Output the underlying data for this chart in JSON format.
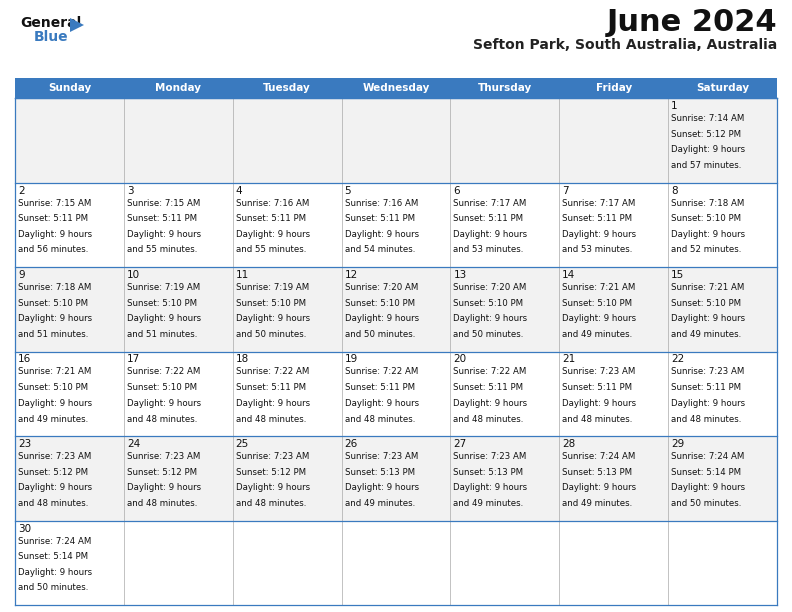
{
  "title": "June 2024",
  "subtitle": "Sefton Park, South Australia, Australia",
  "header_bg": "#3a7abf",
  "header_text": "#ffffff",
  "border_color": "#3a7abf",
  "cell_bg_even": "#f2f2f2",
  "cell_bg_odd": "#ffffff",
  "days_of_week": [
    "Sunday",
    "Monday",
    "Tuesday",
    "Wednesday",
    "Thursday",
    "Friday",
    "Saturday"
  ],
  "calendar_data": [
    [
      null,
      null,
      null,
      null,
      null,
      null,
      {
        "day": 1,
        "sunrise": "7:14 AM",
        "sunset": "5:12 PM",
        "daylight": "9 hours",
        "daylight2": "and 57 minutes."
      }
    ],
    [
      {
        "day": 2,
        "sunrise": "7:15 AM",
        "sunset": "5:11 PM",
        "daylight": "9 hours",
        "daylight2": "and 56 minutes."
      },
      {
        "day": 3,
        "sunrise": "7:15 AM",
        "sunset": "5:11 PM",
        "daylight": "9 hours",
        "daylight2": "and 55 minutes."
      },
      {
        "day": 4,
        "sunrise": "7:16 AM",
        "sunset": "5:11 PM",
        "daylight": "9 hours",
        "daylight2": "and 55 minutes."
      },
      {
        "day": 5,
        "sunrise": "7:16 AM",
        "sunset": "5:11 PM",
        "daylight": "9 hours",
        "daylight2": "and 54 minutes."
      },
      {
        "day": 6,
        "sunrise": "7:17 AM",
        "sunset": "5:11 PM",
        "daylight": "9 hours",
        "daylight2": "and 53 minutes."
      },
      {
        "day": 7,
        "sunrise": "7:17 AM",
        "sunset": "5:11 PM",
        "daylight": "9 hours",
        "daylight2": "and 53 minutes."
      },
      {
        "day": 8,
        "sunrise": "7:18 AM",
        "sunset": "5:10 PM",
        "daylight": "9 hours",
        "daylight2": "and 52 minutes."
      }
    ],
    [
      {
        "day": 9,
        "sunrise": "7:18 AM",
        "sunset": "5:10 PM",
        "daylight": "9 hours",
        "daylight2": "and 51 minutes."
      },
      {
        "day": 10,
        "sunrise": "7:19 AM",
        "sunset": "5:10 PM",
        "daylight": "9 hours",
        "daylight2": "and 51 minutes."
      },
      {
        "day": 11,
        "sunrise": "7:19 AM",
        "sunset": "5:10 PM",
        "daylight": "9 hours",
        "daylight2": "and 50 minutes."
      },
      {
        "day": 12,
        "sunrise": "7:20 AM",
        "sunset": "5:10 PM",
        "daylight": "9 hours",
        "daylight2": "and 50 minutes."
      },
      {
        "day": 13,
        "sunrise": "7:20 AM",
        "sunset": "5:10 PM",
        "daylight": "9 hours",
        "daylight2": "and 50 minutes."
      },
      {
        "day": 14,
        "sunrise": "7:21 AM",
        "sunset": "5:10 PM",
        "daylight": "9 hours",
        "daylight2": "and 49 minutes."
      },
      {
        "day": 15,
        "sunrise": "7:21 AM",
        "sunset": "5:10 PM",
        "daylight": "9 hours",
        "daylight2": "and 49 minutes."
      }
    ],
    [
      {
        "day": 16,
        "sunrise": "7:21 AM",
        "sunset": "5:10 PM",
        "daylight": "9 hours",
        "daylight2": "and 49 minutes."
      },
      {
        "day": 17,
        "sunrise": "7:22 AM",
        "sunset": "5:10 PM",
        "daylight": "9 hours",
        "daylight2": "and 48 minutes."
      },
      {
        "day": 18,
        "sunrise": "7:22 AM",
        "sunset": "5:11 PM",
        "daylight": "9 hours",
        "daylight2": "and 48 minutes."
      },
      {
        "day": 19,
        "sunrise": "7:22 AM",
        "sunset": "5:11 PM",
        "daylight": "9 hours",
        "daylight2": "and 48 minutes."
      },
      {
        "day": 20,
        "sunrise": "7:22 AM",
        "sunset": "5:11 PM",
        "daylight": "9 hours",
        "daylight2": "and 48 minutes."
      },
      {
        "day": 21,
        "sunrise": "7:23 AM",
        "sunset": "5:11 PM",
        "daylight": "9 hours",
        "daylight2": "and 48 minutes."
      },
      {
        "day": 22,
        "sunrise": "7:23 AM",
        "sunset": "5:11 PM",
        "daylight": "9 hours",
        "daylight2": "and 48 minutes."
      }
    ],
    [
      {
        "day": 23,
        "sunrise": "7:23 AM",
        "sunset": "5:12 PM",
        "daylight": "9 hours",
        "daylight2": "and 48 minutes."
      },
      {
        "day": 24,
        "sunrise": "7:23 AM",
        "sunset": "5:12 PM",
        "daylight": "9 hours",
        "daylight2": "and 48 minutes."
      },
      {
        "day": 25,
        "sunrise": "7:23 AM",
        "sunset": "5:12 PM",
        "daylight": "9 hours",
        "daylight2": "and 48 minutes."
      },
      {
        "day": 26,
        "sunrise": "7:23 AM",
        "sunset": "5:13 PM",
        "daylight": "9 hours",
        "daylight2": "and 49 minutes."
      },
      {
        "day": 27,
        "sunrise": "7:23 AM",
        "sunset": "5:13 PM",
        "daylight": "9 hours",
        "daylight2": "and 49 minutes."
      },
      {
        "day": 28,
        "sunrise": "7:24 AM",
        "sunset": "5:13 PM",
        "daylight": "9 hours",
        "daylight2": "and 49 minutes."
      },
      {
        "day": 29,
        "sunrise": "7:24 AM",
        "sunset": "5:14 PM",
        "daylight": "9 hours",
        "daylight2": "and 50 minutes."
      }
    ],
    [
      {
        "day": 30,
        "sunrise": "7:24 AM",
        "sunset": "5:14 PM",
        "daylight": "9 hours",
        "daylight2": "and 50 minutes."
      },
      null,
      null,
      null,
      null,
      null,
      null
    ]
  ]
}
